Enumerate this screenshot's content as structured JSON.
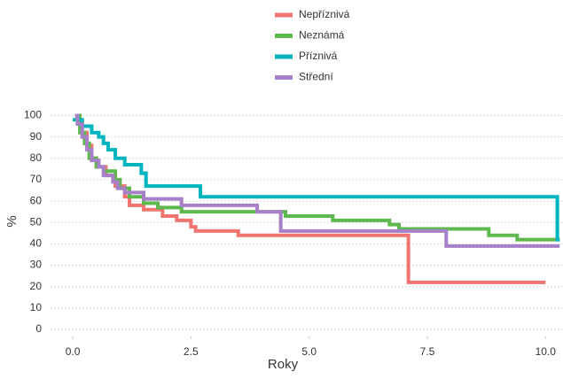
{
  "chart_data": {
    "type": "step",
    "xlabel": "Roky",
    "ylabel": "%",
    "xlim": [
      -0.47,
      10.37
    ],
    "ylim": [
      -3.3,
      103.5
    ],
    "xticks": [
      {
        "value": 0,
        "label": "0.0"
      },
      {
        "value": 2.5,
        "label": "2.5"
      },
      {
        "value": 5,
        "label": "5.0"
      },
      {
        "value": 7.5,
        "label": "7.5"
      },
      {
        "value": 10,
        "label": "10.0"
      }
    ],
    "yticks": [
      0,
      10,
      20,
      30,
      40,
      50,
      60,
      70,
      80,
      90,
      100
    ],
    "grid": true,
    "legend": "top",
    "series": [
      {
        "name": "Nepříznivá",
        "color": "#f07470",
        "x": [
          0.05,
          0.1,
          0.2,
          0.3,
          0.4,
          0.5,
          0.7,
          0.9,
          1.1,
          1.2,
          1.5,
          1.9,
          2.2,
          2.5,
          2.6,
          3.5,
          7.1,
          10.0
        ],
        "values": [
          100,
          97,
          92,
          86,
          80,
          76,
          72,
          67,
          62,
          58,
          56,
          53,
          51,
          48,
          46,
          44,
          22,
          22
        ]
      },
      {
        "name": "Neznámá",
        "color": "#5db84d",
        "x": [
          0.05,
          0.15,
          0.25,
          0.35,
          0.5,
          0.65,
          0.9,
          1.0,
          1.2,
          1.5,
          1.8,
          2.3,
          4.5,
          5.5,
          6.7,
          6.9,
          8.8,
          9.4,
          10.3
        ],
        "values": [
          100,
          92,
          87,
          80,
          76,
          74,
          70,
          66,
          62,
          59,
          57,
          55,
          53,
          51,
          49,
          47,
          44,
          42,
          42
        ]
      },
      {
        "name": "Příznivá",
        "color": "#00b5bd",
        "x": [
          0.0,
          0.2,
          0.4,
          0.55,
          0.65,
          0.75,
          0.9,
          1.1,
          1.45,
          1.55,
          2.7,
          10.25,
          10.3
        ],
        "values": [
          98,
          95,
          92,
          90,
          87,
          84,
          80,
          77,
          73,
          67,
          62,
          42,
          42
        ]
      },
      {
        "name": "Střední",
        "color": "#a680c8",
        "x": [
          0.05,
          0.1,
          0.2,
          0.3,
          0.4,
          0.55,
          0.65,
          0.85,
          0.95,
          1.1,
          1.5,
          2.3,
          3.9,
          4.4,
          7.9,
          10.3
        ],
        "values": [
          100,
          96,
          90,
          84,
          79,
          76,
          72,
          69,
          66,
          64,
          61,
          58,
          55,
          46,
          39,
          39
        ]
      }
    ]
  }
}
